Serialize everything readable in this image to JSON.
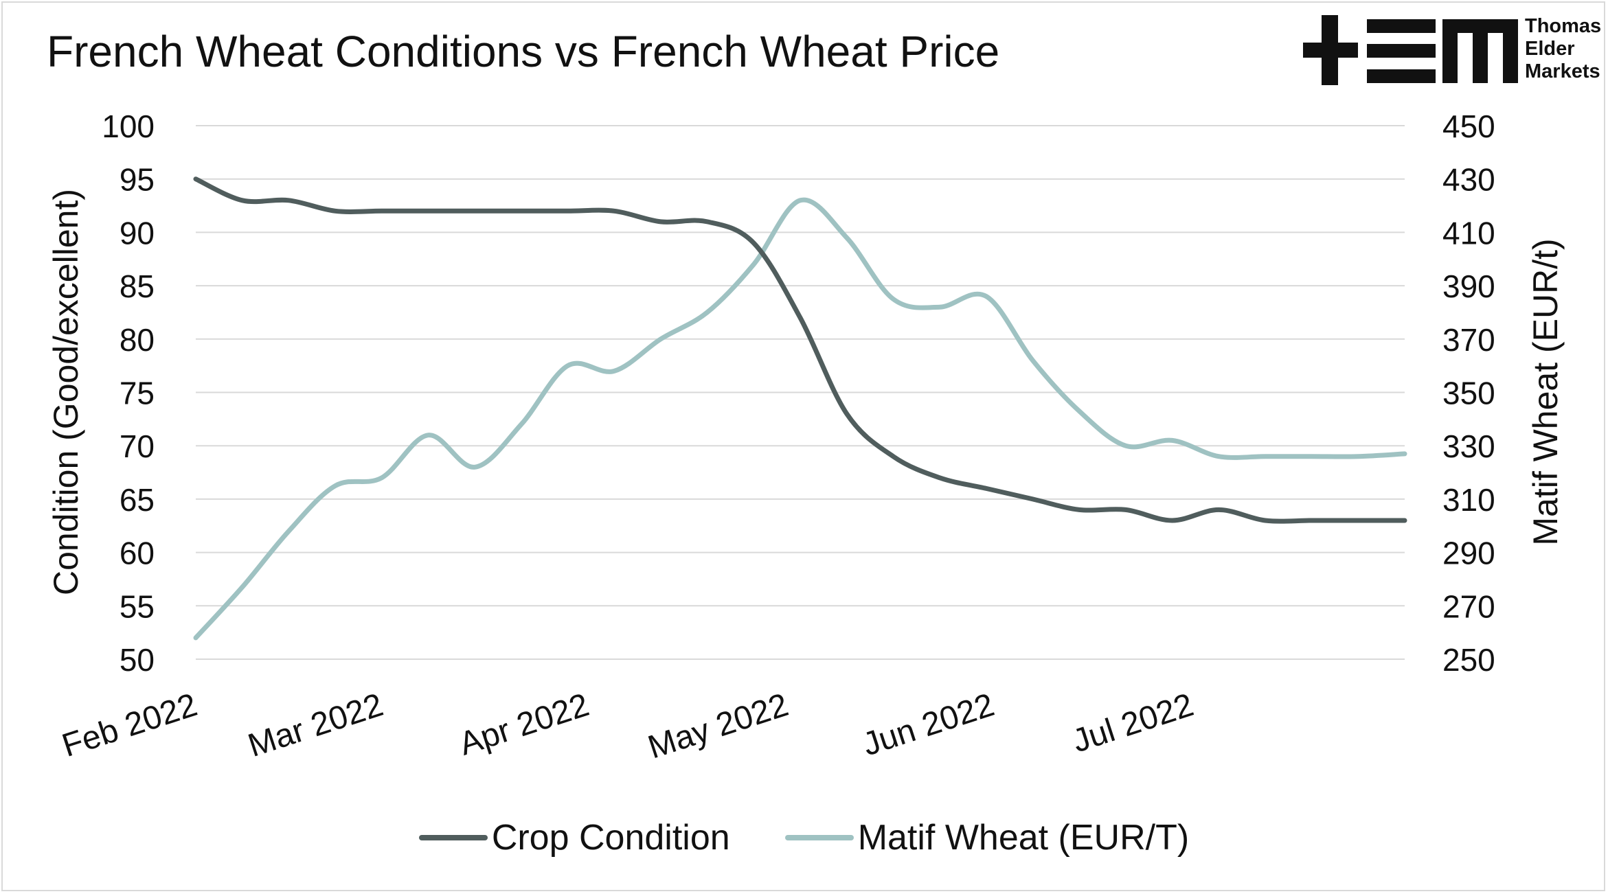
{
  "chart_data": {
    "type": "line",
    "title": "French Wheat Conditions vs French Wheat Price",
    "x_ticks": [
      "Feb 2022",
      "Mar 2022",
      "Apr 2022",
      "May 2022",
      "Jun 2022",
      "Jul 2022"
    ],
    "y_left": {
      "label": "Condition (Good/excellent)",
      "min": 50,
      "max": 100,
      "step": 5,
      "ticks": [
        "100",
        "95",
        "90",
        "85",
        "80",
        "75",
        "70",
        "65",
        "60",
        "55",
        "50"
      ]
    },
    "y_right": {
      "label": "Matif Wheat (EUR/t)",
      "min": 250,
      "max": 450,
      "step": 20,
      "ticks": [
        "450",
        "430",
        "410",
        "390",
        "370",
        "350",
        "330",
        "310",
        "290",
        "270",
        "250"
      ]
    },
    "grid": true,
    "legend_position": "bottom",
    "series": [
      {
        "name": "Crop Condition",
        "axis": "left",
        "color": "#505d5d",
        "x": [
          "2022-02-01",
          "2022-02-08",
          "2022-02-15",
          "2022-02-22",
          "2022-03-01",
          "2022-03-08",
          "2022-03-15",
          "2022-03-22",
          "2022-03-29",
          "2022-04-05",
          "2022-04-12",
          "2022-04-19",
          "2022-04-26",
          "2022-05-03",
          "2022-05-10",
          "2022-05-17",
          "2022-05-24",
          "2022-05-31",
          "2022-06-07",
          "2022-06-14",
          "2022-06-21",
          "2022-06-28",
          "2022-07-05",
          "2022-07-12",
          "2022-07-19",
          "2022-07-26",
          "2022-08-02"
        ],
        "values": [
          95,
          93,
          93,
          92,
          92,
          92,
          92,
          92,
          92,
          92,
          91,
          91,
          89,
          82,
          73,
          69,
          67,
          66,
          65,
          64,
          64,
          63,
          64,
          63,
          63,
          63,
          63
        ]
      },
      {
        "name": "Matif Wheat (EUR/T)",
        "axis": "right",
        "color": "#9fc2c2",
        "x": [
          "2022-02-01",
          "2022-02-08",
          "2022-02-15",
          "2022-02-22",
          "2022-03-01",
          "2022-03-08",
          "2022-03-15",
          "2022-03-22",
          "2022-03-29",
          "2022-04-05",
          "2022-04-12",
          "2022-04-19",
          "2022-04-26",
          "2022-05-03",
          "2022-05-10",
          "2022-05-17",
          "2022-05-24",
          "2022-05-31",
          "2022-06-07",
          "2022-06-14",
          "2022-06-21",
          "2022-06-28",
          "2022-07-05",
          "2022-07-12",
          "2022-07-19",
          "2022-07-26",
          "2022-08-02"
        ],
        "values": [
          258,
          277,
          298,
          315,
          318,
          334,
          322,
          338,
          360,
          358,
          370,
          380,
          398,
          422,
          408,
          385,
          382,
          386,
          362,
          343,
          330,
          332,
          326,
          326,
          326,
          326,
          327
        ]
      }
    ]
  },
  "legend": {
    "items": [
      {
        "label": "Crop Condition",
        "color": "#505d5d"
      },
      {
        "label": "Matif Wheat (EUR/T)",
        "color": "#9fc2c2"
      }
    ]
  },
  "logo": {
    "lines": [
      "Thomas",
      "Elder",
      "Markets"
    ]
  }
}
